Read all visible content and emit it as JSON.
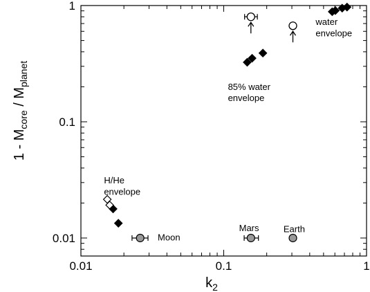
{
  "chart_data": {
    "type": "scatter",
    "xscale": "log",
    "yscale": "log",
    "xlim": [
      0.01,
      1
    ],
    "ylim": [
      0.007,
      1
    ],
    "x_ticks": [
      {
        "value": 0.01,
        "label": "0.01"
      },
      {
        "value": 0.1,
        "label": "0.1"
      },
      {
        "value": 1,
        "label": "1"
      }
    ],
    "y_ticks": [
      {
        "value": 0.01,
        "label": "0.01"
      },
      {
        "value": 0.1,
        "label": "0.1"
      },
      {
        "value": 1,
        "label": "1"
      }
    ],
    "xlabel": {
      "main": "k",
      "sub": "2"
    },
    "ylabel": {
      "prefix": "1 - M",
      "sub1": "core",
      "mid": " / M",
      "sub2": "planet"
    },
    "series": [
      {
        "marker": "diamond-filled",
        "color": "#000000",
        "points": [
          {
            "x": 0.0168,
            "y": 0.0178
          },
          {
            "x": 0.0183,
            "y": 0.0134
          },
          {
            "x": 0.146,
            "y": 0.325
          },
          {
            "x": 0.158,
            "y": 0.352
          },
          {
            "x": 0.188,
            "y": 0.39
          },
          {
            "x": 0.575,
            "y": 0.885
          },
          {
            "x": 0.605,
            "y": 0.905
          },
          {
            "x": 0.675,
            "y": 0.95
          },
          {
            "x": 0.73,
            "y": 0.97
          }
        ]
      },
      {
        "marker": "diamond-open",
        "color": "#000000",
        "points": [
          {
            "x": 0.0153,
            "y": 0.0215
          },
          {
            "x": 0.0159,
            "y": 0.0192
          }
        ]
      },
      {
        "marker": "circle-open",
        "color": "#000000",
        "points": [
          {
            "x": 0.155,
            "y": 0.8,
            "xerr": [
              0.14,
              0.172
            ],
            "arrow": "up"
          },
          {
            "x": 0.305,
            "y": 0.67,
            "arrow": "up"
          }
        ]
      },
      {
        "marker": "circle-gray",
        "color": "#999999",
        "points": [
          {
            "x": 0.026,
            "y": 0.01,
            "xerr": [
              0.0228,
              0.0295
            ]
          },
          {
            "x": 0.155,
            "y": 0.01,
            "xerr": [
              0.139,
              0.175
            ]
          },
          {
            "x": 0.305,
            "y": 0.01
          }
        ]
      }
    ],
    "annotations": [
      {
        "text": "H/He",
        "x": 0.0145,
        "y": 0.0295
      },
      {
        "text": "envelope",
        "x": 0.0145,
        "y": 0.0235
      },
      {
        "text": "85% water",
        "x": 0.107,
        "y": 0.188
      },
      {
        "text": "envelope",
        "x": 0.107,
        "y": 0.151
      },
      {
        "text": "water",
        "x": 0.44,
        "y": 0.68
      },
      {
        "text": "envelope",
        "x": 0.44,
        "y": 0.545
      },
      {
        "text": "Moon",
        "x": 0.0345,
        "y": 0.0095
      },
      {
        "text": "Mars",
        "x": 0.128,
        "y": 0.0115
      },
      {
        "text": "Earth",
        "x": 0.262,
        "y": 0.0112
      }
    ]
  }
}
